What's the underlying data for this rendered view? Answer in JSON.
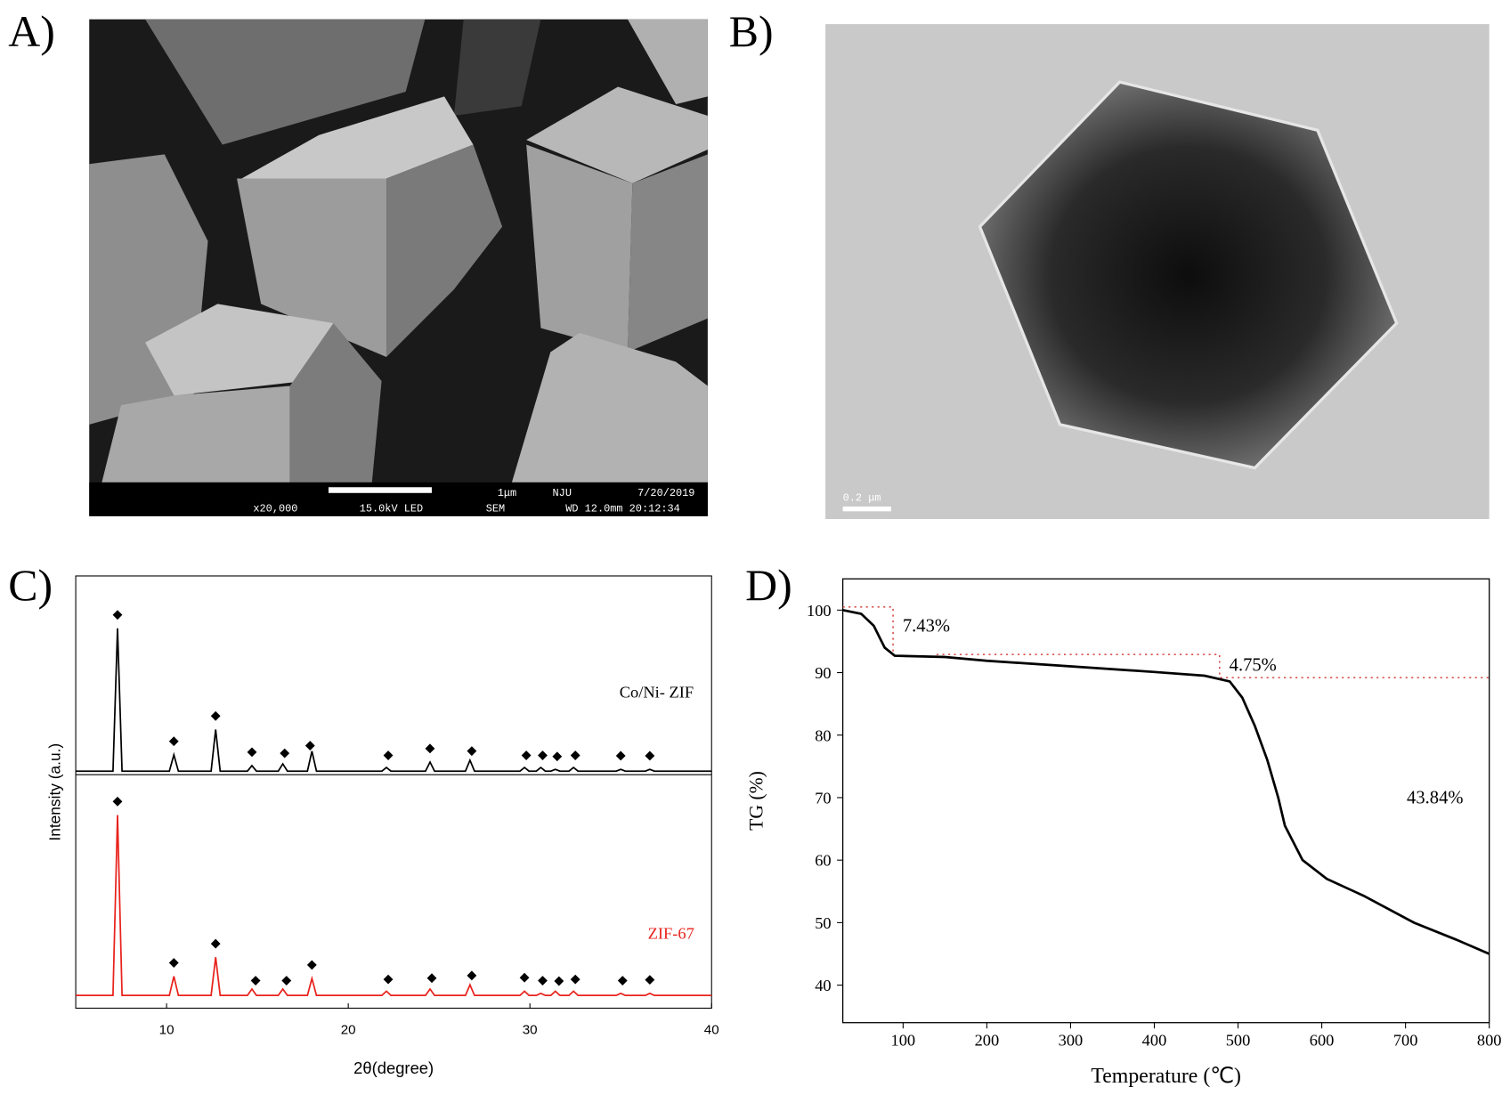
{
  "panel_labels": [
    "A)",
    "B)",
    "C)",
    "D)"
  ],
  "sem_image": {
    "scale_bar": "1μm",
    "lab": "NJU",
    "date": "7/20/2019",
    "magnification": "x20,000",
    "voltage": "15.0kV LED",
    "mode": "SEM",
    "working_distance": "WD 12.0mm 20:12:34"
  },
  "tem_image": {
    "scale_bar": "0.2 μm"
  },
  "chart_data": [
    {
      "type": "line",
      "stacked": true,
      "x_label": "2θ(degree)",
      "y_label": "Intensity (a.u.)",
      "xlim": [
        5,
        40
      ],
      "xticks": [
        10,
        20,
        30,
        40
      ],
      "series": [
        {
          "name": "Co/Ni- ZIF",
          "color": "#000000",
          "ylim": [
            0,
            110
          ],
          "x": [
            5,
            7.05,
            7.3,
            7.55,
            10.15,
            10.4,
            10.65,
            12.45,
            12.7,
            12.95,
            14.45,
            14.7,
            14.95,
            16.15,
            16.4,
            16.65,
            17.75,
            18.0,
            18.25,
            21.85,
            22.1,
            22.35,
            24.25,
            24.5,
            24.75,
            26.45,
            26.7,
            26.95,
            29.45,
            29.7,
            29.95,
            30.35,
            30.6,
            30.85,
            31.15,
            31.4,
            31.65,
            32.15,
            32.4,
            32.65,
            34.75,
            35.0,
            35.25,
            36.35,
            36.6,
            36.85,
            40
          ],
          "values": [
            2,
            2,
            81,
            2,
            2,
            11,
            2,
            2,
            25,
            2,
            2,
            5,
            2,
            2,
            6,
            2,
            2,
            13,
            2,
            2,
            4,
            2,
            2,
            7,
            2,
            2,
            8,
            2,
            2,
            4,
            2,
            2,
            4,
            2,
            2,
            3,
            2,
            2,
            4,
            2,
            2,
            3,
            2,
            2,
            3,
            2,
            2
          ],
          "markers": [
            7.3,
            10.4,
            12.7,
            14.7,
            16.5,
            17.9,
            22.2,
            24.5,
            26.8,
            29.8,
            30.7,
            31.5,
            32.5,
            35.0,
            36.6
          ]
        },
        {
          "name": "ZIF-67",
          "color": "#e8221c",
          "ylim": [
            0,
            110
          ],
          "x": [
            5,
            7.05,
            7.3,
            7.55,
            10.15,
            10.4,
            10.65,
            12.45,
            12.7,
            12.95,
            14.45,
            14.7,
            14.95,
            16.15,
            16.4,
            16.65,
            17.75,
            18.0,
            18.25,
            21.85,
            22.1,
            22.35,
            24.25,
            24.5,
            24.75,
            26.45,
            26.7,
            26.95,
            29.45,
            29.7,
            29.95,
            30.35,
            30.6,
            30.85,
            31.15,
            31.4,
            31.65,
            32.15,
            32.4,
            32.65,
            34.75,
            35.0,
            35.25,
            36.35,
            36.6,
            36.85,
            40
          ],
          "values": [
            6,
            6,
            91,
            6,
            6,
            15,
            6,
            6,
            24,
            6,
            6,
            9,
            6,
            6,
            9,
            6,
            6,
            14,
            6,
            6,
            8,
            6,
            6,
            9,
            6,
            6,
            11,
            6,
            6,
            8,
            6,
            6,
            7,
            6,
            6,
            8,
            6,
            6,
            8,
            6,
            6,
            7,
            6,
            6,
            7,
            6,
            6
          ],
          "markers": [
            7.3,
            10.4,
            12.7,
            14.9,
            16.6,
            18.0,
            22.2,
            24.6,
            26.8,
            29.7,
            30.7,
            31.6,
            32.5,
            35.1,
            36.6
          ]
        }
      ]
    },
    {
      "type": "line",
      "x_label": "Temperature (℃)",
      "y_label": "TG (%)",
      "xlim": [
        28,
        800
      ],
      "ylim": [
        34,
        105
      ],
      "xticks": [
        100,
        200,
        300,
        400,
        500,
        600,
        700,
        800
      ],
      "yticks": [
        40,
        50,
        60,
        70,
        80,
        90,
        100
      ],
      "series": [
        {
          "color": "#000000",
          "x": [
            28,
            50,
            65,
            78,
            90,
            150,
            200,
            300,
            400,
            460,
            490,
            505,
            520,
            535,
            548,
            556,
            577,
            606,
            650,
            710,
            760,
            800
          ],
          "values": [
            100,
            99.4,
            97.5,
            94,
            92.7,
            92.5,
            91.9,
            91,
            90.1,
            89.5,
            88.6,
            86,
            81.5,
            76,
            70,
            65.5,
            60,
            57,
            54.3,
            50,
            47.3,
            45
          ]
        }
      ],
      "guide_lines": [
        {
          "color": "#d9534f",
          "x": [
            28,
            88,
            88
          ],
          "y": [
            100.5,
            100.5,
            92.7
          ]
        },
        {
          "color": "#d9534f",
          "x": [
            140,
            478,
            478,
            800
          ],
          "y": [
            92.9,
            92.9,
            89.2,
            89.2
          ]
        }
      ],
      "annotations": [
        {
          "text": "7.43%",
          "x": 88,
          "y": 97.5
        },
        {
          "text": "4.75%",
          "x": 478,
          "y": 91.2
        },
        {
          "text": "43.84%",
          "x": 690,
          "y": 70
        }
      ]
    }
  ]
}
